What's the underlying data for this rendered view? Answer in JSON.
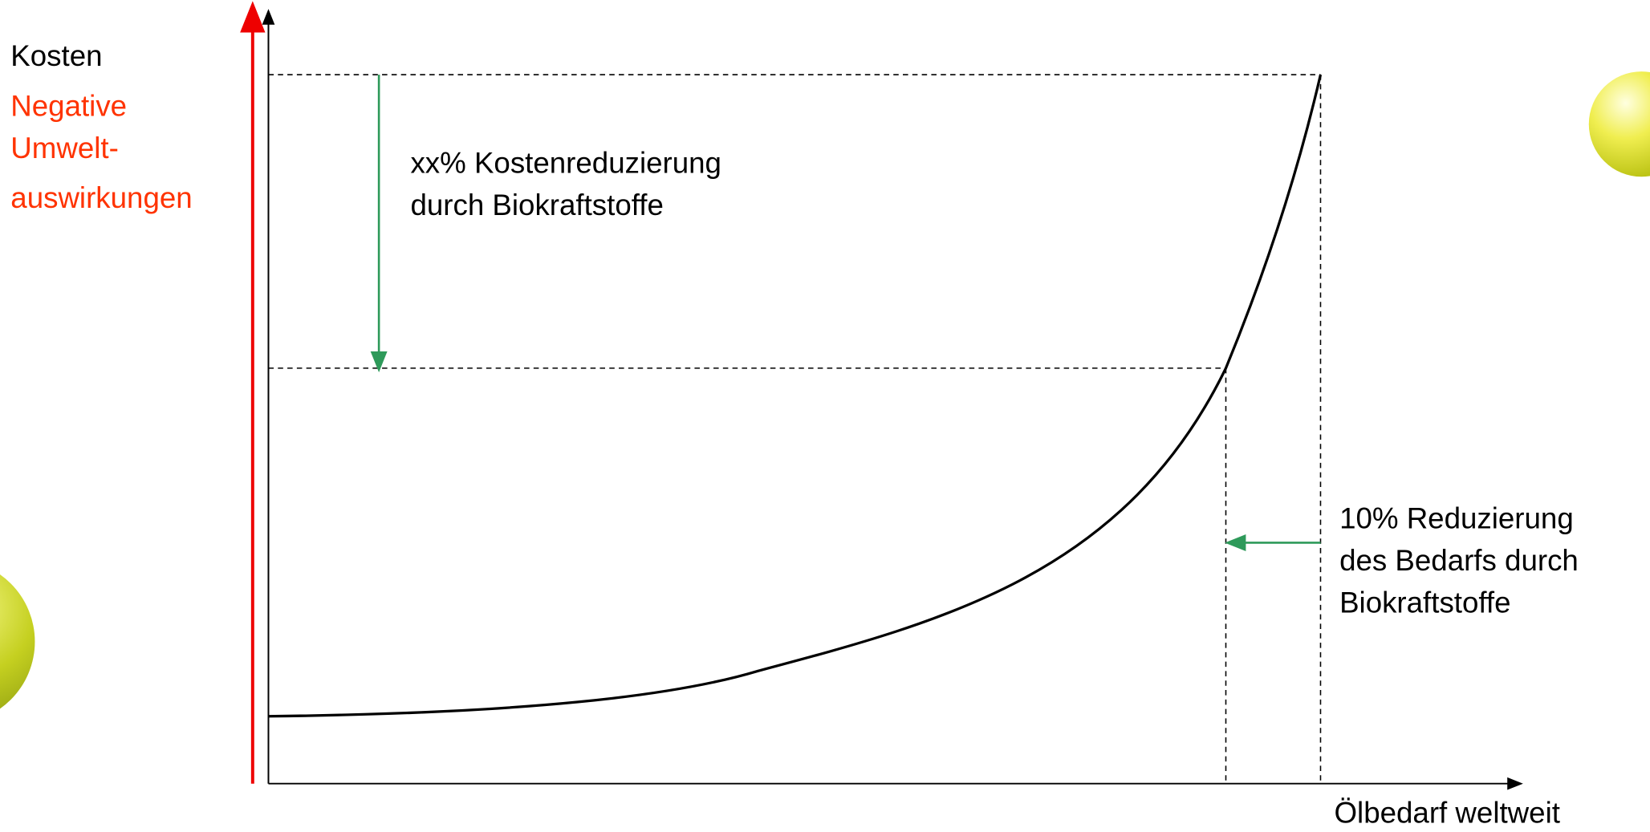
{
  "axes": {
    "y_label": "Kosten",
    "y2_label_lines": [
      "Negative",
      "Umwelt-",
      "auswirkungen"
    ],
    "x_label": "Ölbedarf weltweit"
  },
  "annotations": {
    "cost_reduction": [
      "xx% Kostenreduzierung",
      "durch Biokraftstoffe"
    ],
    "demand_reduction": [
      "10% Reduzierung",
      "des Bedarfs durch",
      "Biokraftstoffe"
    ]
  }
}
